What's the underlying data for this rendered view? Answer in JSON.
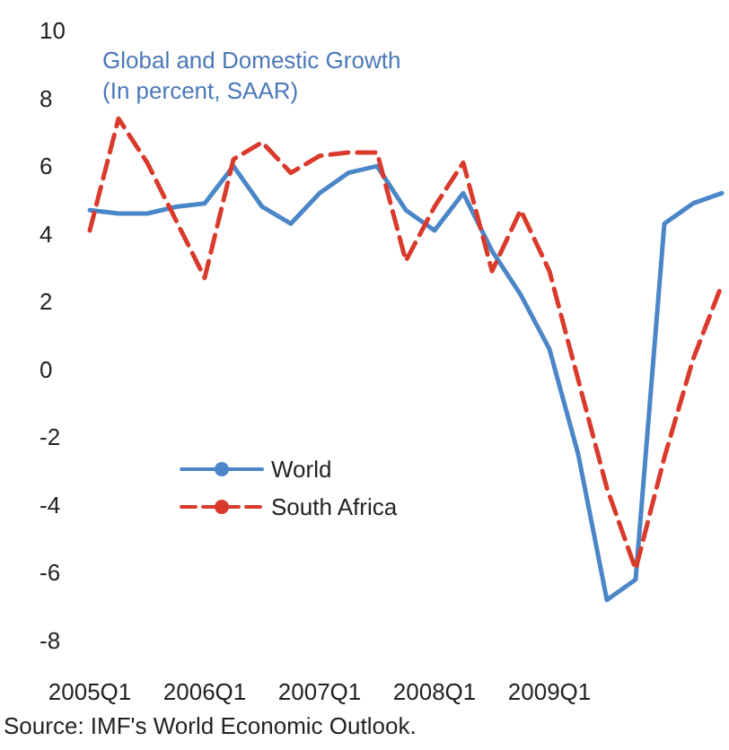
{
  "chart_data": {
    "type": "line",
    "title": "Global and Domestic Growth",
    "subtitle": "(In percent, SAAR)",
    "categories": [
      "2005Q1",
      null,
      null,
      null,
      "2006Q1",
      null,
      null,
      null,
      "2007Q1",
      null,
      null,
      null,
      "2008Q1",
      null,
      null,
      null,
      "2009Q1",
      null,
      null,
      null,
      null,
      null,
      null
    ],
    "series": [
      {
        "name": "World",
        "color": "#4a86c8",
        "line_style": "solid",
        "values": [
          4.7,
          4.6,
          4.6,
          4.8,
          4.9,
          6.0,
          4.8,
          4.3,
          5.2,
          5.8,
          6.0,
          4.7,
          4.1,
          5.2,
          3.5,
          2.2,
          0.6,
          -2.5,
          -6.8,
          -6.2,
          4.3,
          4.9,
          5.2
        ]
      },
      {
        "name": "South Africa",
        "color": "#d93a2b",
        "line_style": "dashed",
        "values": [
          4.1,
          7.4,
          6.1,
          4.4,
          2.7,
          6.2,
          6.7,
          5.8,
          6.3,
          6.4,
          6.4,
          3.2,
          4.8,
          6.1,
          2.9,
          4.7,
          2.9,
          -0.3,
          -3.5,
          -5.9,
          -2.6,
          0.3,
          2.5
        ]
      }
    ],
    "ylim": [
      -8,
      10
    ],
    "yticks": [
      -8,
      -6,
      -4,
      -2,
      0,
      2,
      4,
      6,
      8,
      10
    ],
    "marker": "none",
    "legend": "bottom left",
    "annotations": [
      "Source: IMF's World Economic Outlook."
    ]
  }
}
